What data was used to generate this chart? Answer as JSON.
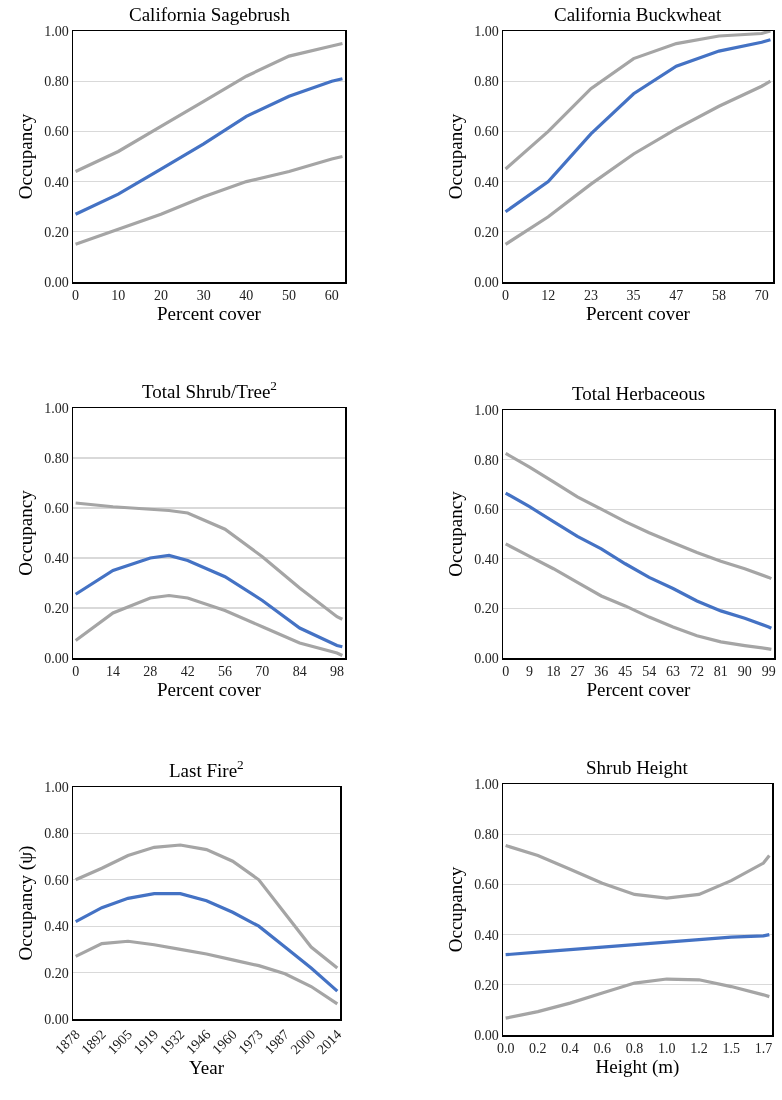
{
  "chart_data": [
    {
      "type": "line",
      "title": "California Sagebrush",
      "xlabel": "Percent cover",
      "ylabel": "Occupancy",
      "grid": "y",
      "x": [
        0,
        10,
        20,
        30,
        40,
        50,
        60,
        62.5
      ],
      "series": [
        {
          "color": "#a5a5a5",
          "values": [
            0.44,
            0.52,
            0.62,
            0.72,
            0.82,
            0.9,
            0.94,
            0.95
          ]
        },
        {
          "color": "#a5a5a5",
          "values": [
            0.15,
            0.21,
            0.27,
            0.34,
            0.4,
            0.44,
            0.49,
            0.5
          ]
        },
        {
          "color": "#4472c4",
          "values": [
            0.27,
            0.35,
            0.45,
            0.55,
            0.66,
            0.74,
            0.8,
            0.81
          ]
        }
      ],
      "xlim": [
        -0.6,
        63.1
      ],
      "xticks": [
        0,
        10,
        20,
        30,
        40,
        50,
        60
      ],
      "ylim": [
        0,
        1
      ],
      "yticks": [
        {
          "value": 0,
          "label": "0.00"
        },
        {
          "value": 0.2,
          "label": "0.20"
        },
        {
          "value": 0.4,
          "label": "0.40"
        },
        {
          "value": 0.6,
          "label": "0.60"
        },
        {
          "value": 0.8,
          "label": "0.80"
        },
        {
          "value": 1,
          "label": "1.00"
        }
      ]
    },
    {
      "type": "line",
      "title": "California Buckwheat",
      "xlabel": "Percent cover",
      "ylabel": "Occupancy",
      "grid": "y",
      "x": [
        0,
        11.67,
        23.33,
        35,
        46.67,
        58.33,
        70,
        72.4
      ],
      "series": [
        {
          "color": "#a5a5a5",
          "values": [
            0.45,
            0.6,
            0.77,
            0.89,
            0.95,
            0.98,
            0.99,
            1.0
          ]
        },
        {
          "color": "#a5a5a5",
          "values": [
            0.15,
            0.26,
            0.39,
            0.51,
            0.61,
            0.7,
            0.78,
            0.8
          ]
        },
        {
          "color": "#4472c4",
          "values": [
            0.28,
            0.4,
            0.59,
            0.75,
            0.86,
            0.92,
            0.955,
            0.965
          ]
        }
      ],
      "xlim": [
        -0.7,
        73.1
      ],
      "xticks": [
        0,
        {
          "value": 11.67,
          "label": "12"
        },
        {
          "value": 23.33,
          "label": "23"
        },
        35,
        {
          "value": 46.67,
          "label": "47"
        },
        {
          "value": 58.33,
          "label": "58"
        },
        70
      ],
      "ylim": [
        0,
        1
      ],
      "yticks": [
        {
          "value": 0,
          "label": "0.00"
        },
        {
          "value": 0.2,
          "label": "0.20"
        },
        {
          "value": 0.4,
          "label": "0.40"
        },
        {
          "value": 0.6,
          "label": "0.60"
        },
        {
          "value": 0.8,
          "label": "0.80"
        },
        {
          "value": 1,
          "label": "1.00"
        }
      ]
    },
    {
      "type": "line",
      "title": "Total Shrub/Tree$^{2}$",
      "xlabel": "Percent cover",
      "ylabel": "Occupancy",
      "grid": "y",
      "x": [
        0,
        14,
        28,
        35,
        42,
        56,
        70,
        84,
        98,
        100
      ],
      "series": [
        {
          "color": "#a5a5a5",
          "values": [
            0.62,
            0.605,
            0.595,
            0.59,
            0.58,
            0.515,
            0.405,
            0.28,
            0.165,
            0.155
          ]
        },
        {
          "color": "#a5a5a5",
          "values": [
            0.07,
            0.18,
            0.24,
            0.25,
            0.24,
            0.19,
            0.125,
            0.06,
            0.02,
            0.01
          ]
        },
        {
          "color": "#4472c4",
          "values": [
            0.255,
            0.35,
            0.4,
            0.41,
            0.39,
            0.325,
            0.23,
            0.12,
            0.05,
            0.045
          ]
        }
      ],
      "xlim": [
        -1,
        101
      ],
      "xticks": [
        0,
        14,
        28,
        42,
        56,
        70,
        84,
        98
      ],
      "ylim": [
        0,
        1
      ],
      "yticks": [
        {
          "value": 0,
          "label": "0.00"
        },
        {
          "value": 0.2,
          "label": "0.20"
        },
        {
          "value": 0.4,
          "label": "0.40"
        },
        {
          "value": 0.6,
          "label": "0.60"
        },
        {
          "value": 0.8,
          "label": "0.80"
        },
        {
          "value": 1,
          "label": "1.00"
        }
      ]
    },
    {
      "type": "line",
      "title": "Total Herbaceous",
      "xlabel": "Percent cover",
      "ylabel": "Occupancy",
      "grid": "y",
      "x": [
        0,
        9,
        18,
        27,
        36,
        45,
        54,
        63,
        72,
        81,
        90,
        99,
        100
      ],
      "series": [
        {
          "color": "#a5a5a5",
          "values": [
            0.825,
            0.77,
            0.71,
            0.65,
            0.6,
            0.55,
            0.505,
            0.465,
            0.425,
            0.39,
            0.36,
            0.325,
            0.32
          ]
        },
        {
          "color": "#a5a5a5",
          "values": [
            0.46,
            0.41,
            0.36,
            0.305,
            0.25,
            0.21,
            0.165,
            0.125,
            0.09,
            0.065,
            0.05,
            0.037,
            0.035
          ]
        },
        {
          "color": "#4472c4",
          "values": [
            0.665,
            0.61,
            0.55,
            0.49,
            0.44,
            0.38,
            0.325,
            0.28,
            0.23,
            0.19,
            0.16,
            0.125,
            0.12
          ]
        }
      ],
      "xlim": [
        -1,
        101
      ],
      "xticks": [
        0,
        9,
        18,
        27,
        36,
        45,
        54,
        63,
        72,
        81,
        90,
        99
      ],
      "ylim": [
        0,
        1
      ],
      "yticks": [
        {
          "value": 0,
          "label": "0.00"
        },
        {
          "value": 0.2,
          "label": "0.20"
        },
        {
          "value": 0.4,
          "label": "0.40"
        },
        {
          "value": 0.6,
          "label": "0.60"
        },
        {
          "value": 0.8,
          "label": "0.80"
        },
        {
          "value": 1,
          "label": "1.00"
        }
      ]
    },
    {
      "type": "line",
      "title": "Last Fire$^{2}$",
      "xlabel": "Year",
      "ylabel": "Occupancy (ψ)",
      "grid": "y",
      "x": [
        1878,
        1891.6,
        1905.2,
        1918.8,
        1932.4,
        1946,
        1959.6,
        1973.2,
        1986.8,
        2000.4,
        2014
      ],
      "series": [
        {
          "color": "#a5a5a5",
          "values": [
            0.6,
            0.65,
            0.705,
            0.74,
            0.75,
            0.73,
            0.68,
            0.6,
            0.455,
            0.31,
            0.22
          ]
        },
        {
          "color": "#a5a5a5",
          "values": [
            0.27,
            0.325,
            0.335,
            0.32,
            0.3,
            0.28,
            0.255,
            0.23,
            0.195,
            0.14,
            0.065
          ]
        },
        {
          "color": "#4472c4",
          "values": [
            0.42,
            0.48,
            0.52,
            0.54,
            0.54,
            0.51,
            0.46,
            0.4,
            0.31,
            0.22,
            0.12
          ]
        }
      ],
      "xlim": [
        1876.6,
        2015.4
      ],
      "xticks": [
        1878,
        {
          "value": 1891.6,
          "label": "1892"
        },
        {
          "value": 1905.2,
          "label": "1905"
        },
        {
          "value": 1918.8,
          "label": "1919"
        },
        {
          "value": 1932.4,
          "label": "1932"
        },
        1946,
        {
          "value": 1959.6,
          "label": "1960"
        },
        {
          "value": 1973.2,
          "label": "1973"
        },
        {
          "value": 1986.8,
          "label": "1987"
        },
        {
          "value": 2000.4,
          "label": "2000"
        },
        2014
      ],
      "ylim": [
        0,
        1
      ],
      "yticks": [
        {
          "value": 0,
          "label": "0.00"
        },
        {
          "value": 0.2,
          "label": "0.20"
        },
        {
          "value": 0.4,
          "label": "0.40"
        },
        {
          "value": 0.6,
          "label": "0.60"
        },
        {
          "value": 0.8,
          "label": "0.80"
        },
        {
          "value": 1,
          "label": "1.00"
        }
      ]
    },
    {
      "type": "line",
      "title": "Shrub Height",
      "xlabel": "Height (m)",
      "ylabel": "Occupancy",
      "grid": "y",
      "x": [
        0,
        0.2075,
        0.415,
        0.6225,
        0.83,
        1.0375,
        1.245,
        1.4525,
        1.66,
        1.698
      ],
      "series": [
        {
          "color": "#a5a5a5",
          "values": [
            0.755,
            0.715,
            0.66,
            0.605,
            0.56,
            0.545,
            0.56,
            0.615,
            0.685,
            0.715
          ]
        },
        {
          "color": "#a5a5a5",
          "values": [
            0.067,
            0.093,
            0.127,
            0.167,
            0.207,
            0.223,
            0.22,
            0.193,
            0.16,
            0.153
          ]
        },
        {
          "color": "#4472c4",
          "values": [
            0.32,
            0.33,
            0.34,
            0.35,
            0.36,
            0.37,
            0.38,
            0.39,
            0.395,
            0.4
          ]
        }
      ],
      "xlim": [
        -0.017,
        1.715
      ],
      "xticks": [
        {
          "value": 0,
          "label": "0.0"
        },
        {
          "value": 0.2075,
          "label": "0.2"
        },
        {
          "value": 0.415,
          "label": "0.4"
        },
        {
          "value": 0.6225,
          "label": "0.6"
        },
        {
          "value": 0.83,
          "label": "0.8"
        },
        {
          "value": 1.0375,
          "label": "1.0"
        },
        {
          "value": 1.245,
          "label": "1.2"
        },
        {
          "value": 1.4525,
          "label": "1.5"
        },
        {
          "value": 1.66,
          "label": "1.7"
        }
      ],
      "ylim": [
        0,
        1
      ],
      "yticks": [
        {
          "value": 0,
          "label": "0.00"
        },
        {
          "value": 0.2,
          "label": "0.20"
        },
        {
          "value": 0.4,
          "label": "0.40"
        },
        {
          "value": 0.6,
          "label": "0.60"
        },
        {
          "value": 0.8,
          "label": "0.80"
        },
        {
          "value": 1,
          "label": "1.00"
        }
      ]
    }
  ]
}
